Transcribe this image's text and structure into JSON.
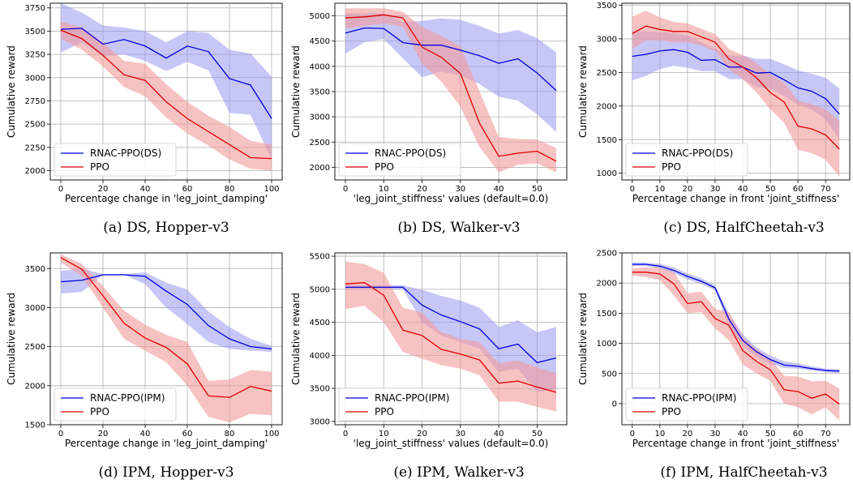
{
  "colors": {
    "blue_line": "#0000dd",
    "red_line": "#e00000",
    "blue_band": "#9999f0",
    "red_band": "#f29a9a",
    "grid": "#b0b0b0"
  },
  "chart_data": [
    {
      "type": "line",
      "caption": "(a) DS, Hopper-v3",
      "xlabel": "Percentage change in 'leg_joint_damping'",
      "ylabel": "Cumulative reward",
      "xlim": [
        -5,
        105
      ],
      "ylim": [
        1900,
        3800
      ],
      "xticks": [
        0,
        20,
        40,
        60,
        80,
        100
      ],
      "yticks": [
        2000,
        2250,
        2500,
        2750,
        3000,
        3250,
        3500,
        3750
      ],
      "legend": "lower-left",
      "x": [
        0,
        10,
        20,
        30,
        40,
        50,
        60,
        70,
        80,
        90,
        100
      ],
      "series": [
        {
          "name": "RNAC-PPO(DS)",
          "color": "blue",
          "values": [
            3520,
            3530,
            3360,
            3410,
            3340,
            3210,
            3340,
            3280,
            2990,
            2920,
            2560
          ],
          "lower": [
            3270,
            3380,
            3230,
            3250,
            3180,
            3070,
            3170,
            3080,
            2620,
            2600,
            2120
          ],
          "upper": [
            3800,
            3700,
            3560,
            3540,
            3500,
            3380,
            3500,
            3480,
            3300,
            3260,
            3010
          ]
        },
        {
          "name": "PPO",
          "color": "red",
          "values": [
            3510,
            3420,
            3240,
            3030,
            2970,
            2740,
            2560,
            2420,
            2280,
            2140,
            2130
          ],
          "lower": [
            3420,
            3300,
            3120,
            2900,
            2800,
            2570,
            2400,
            2270,
            2120,
            2020,
            2000
          ],
          "upper": [
            3600,
            3540,
            3380,
            3180,
            3150,
            2930,
            2740,
            2590,
            2470,
            2320,
            2280
          ]
        }
      ]
    },
    {
      "type": "line",
      "caption": "(b) DS, Walker-v3",
      "xlabel": "'leg_joint_stiffness' values (default=0.0)",
      "ylabel": "Cumulative reward",
      "xlim": [
        -2.75,
        57.75
      ],
      "ylim": [
        1750,
        5250
      ],
      "xticks": [
        0,
        10,
        20,
        30,
        40,
        50
      ],
      "yticks": [
        2000,
        2500,
        3000,
        3500,
        4000,
        4500,
        5000
      ],
      "legend": "lower-left",
      "x": [
        0,
        5,
        10,
        15,
        20,
        25,
        30,
        35,
        40,
        45,
        50,
        55
      ],
      "series": [
        {
          "name": "RNAC-PPO(DS)",
          "color": "blue",
          "values": [
            4660,
            4760,
            4750,
            4470,
            4420,
            4420,
            4320,
            4210,
            4060,
            4150,
            3870,
            3520
          ],
          "lower": [
            4250,
            4480,
            4540,
            4160,
            3780,
            3900,
            3820,
            3650,
            3400,
            3320,
            3050,
            2700
          ],
          "upper": [
            5050,
            5050,
            5050,
            4880,
            4900,
            4950,
            4920,
            4800,
            4650,
            4720,
            4560,
            4280
          ]
        },
        {
          "name": "PPO",
          "color": "red",
          "values": [
            4960,
            4980,
            5020,
            4960,
            4380,
            4180,
            3860,
            2870,
            2220,
            2280,
            2320,
            2120
          ],
          "lower": [
            4750,
            4800,
            4850,
            4780,
            4050,
            3700,
            3200,
            2400,
            1900,
            2050,
            2080,
            1900
          ],
          "upper": [
            5150,
            5150,
            5150,
            5080,
            4780,
            4600,
            4400,
            3500,
            2600,
            2560,
            2550,
            2380
          ]
        }
      ]
    },
    {
      "type": "line",
      "caption": "(c) DS, HalfCheetah-v3",
      "xlabel": "Percentage change in front 'joint_stiffness'",
      "ylabel": "Cumulative reward",
      "xlim": [
        -3.75,
        78.75
      ],
      "ylim": [
        900,
        3530
      ],
      "xticks": [
        0,
        10,
        20,
        30,
        40,
        50,
        60,
        70
      ],
      "yticks": [
        1000,
        1500,
        2000,
        2500,
        3000,
        3500
      ],
      "legend": "lower-left",
      "x": [
        0,
        5,
        10,
        15,
        20,
        25,
        30,
        35,
        40,
        45,
        50,
        55,
        60,
        65,
        70,
        75
      ],
      "series": [
        {
          "name": "RNAC-PPO(DS)",
          "color": "blue",
          "values": [
            2740,
            2770,
            2820,
            2840,
            2800,
            2680,
            2690,
            2580,
            2580,
            2490,
            2500,
            2390,
            2270,
            2220,
            2110,
            1880
          ],
          "lower": [
            2380,
            2450,
            2550,
            2600,
            2570,
            2520,
            2520,
            2400,
            2400,
            2280,
            2260,
            2150,
            2020,
            1950,
            1800,
            1500
          ],
          "upper": [
            3120,
            3110,
            3100,
            3090,
            3050,
            2950,
            2860,
            2750,
            2750,
            2700,
            2700,
            2620,
            2530,
            2480,
            2420,
            2260
          ]
        },
        {
          "name": "PPO",
          "color": "red",
          "values": [
            3080,
            3190,
            3140,
            3110,
            3110,
            3030,
            2950,
            2700,
            2580,
            2420,
            2200,
            2060,
            1700,
            1660,
            1570,
            1360
          ],
          "lower": [
            2850,
            2980,
            2980,
            2950,
            2950,
            2900,
            2820,
            2550,
            2400,
            2200,
            1950,
            1750,
            1350,
            1300,
            1200,
            950
          ],
          "upper": [
            3330,
            3420,
            3320,
            3250,
            3230,
            3150,
            3070,
            2850,
            2760,
            2640,
            2470,
            2350,
            2080,
            2030,
            1950,
            1780
          ]
        }
      ]
    },
    {
      "type": "line",
      "caption": "(d) IPM, Hopper-v3",
      "xlabel": "Percentage change in 'leg_joint_damping'",
      "ylabel": "Cumulative reward",
      "xlim": [
        -5,
        105
      ],
      "ylim": [
        1500,
        3700
      ],
      "xticks": [
        0,
        20,
        40,
        60,
        80,
        100
      ],
      "yticks": [
        1500,
        2000,
        2500,
        3000,
        3500
      ],
      "legend": "lower-left",
      "x": [
        0,
        10,
        20,
        30,
        40,
        50,
        60,
        70,
        80,
        90,
        100
      ],
      "series": [
        {
          "name": "RNAC-PPO(IPM)",
          "color": "blue",
          "values": [
            3330,
            3350,
            3420,
            3420,
            3400,
            3210,
            3040,
            2770,
            2600,
            2500,
            2470
          ],
          "lower": [
            3180,
            3200,
            3420,
            3420,
            3300,
            3000,
            2790,
            2560,
            2470,
            2450,
            2430
          ],
          "upper": [
            3470,
            3500,
            3430,
            3430,
            3450,
            3320,
            3230,
            2950,
            2750,
            2600,
            2510
          ]
        },
        {
          "name": "PPO",
          "color": "red",
          "values": [
            3640,
            3490,
            3150,
            2800,
            2610,
            2490,
            2280,
            1870,
            1850,
            1990,
            1930
          ],
          "lower": [
            3580,
            3400,
            3000,
            2600,
            2450,
            2300,
            2000,
            1600,
            1530,
            1640,
            1620
          ],
          "upper": [
            3680,
            3560,
            3270,
            2960,
            2780,
            2650,
            2560,
            2060,
            2080,
            2200,
            2180
          ]
        }
      ]
    },
    {
      "type": "line",
      "caption": "(e) IPM, Walker-v3",
      "xlabel": "'leg_joint_stiffness' values (default=0.0)",
      "ylabel": "Cumulative reward",
      "xlim": [
        -2.75,
        57.75
      ],
      "ylim": [
        2950,
        5550
      ],
      "xticks": [
        0,
        10,
        20,
        30,
        40,
        50
      ],
      "yticks": [
        3000,
        3500,
        4000,
        4500,
        5000,
        5500
      ],
      "legend": "lower-left",
      "x": [
        0,
        5,
        10,
        15,
        20,
        25,
        30,
        35,
        40,
        45,
        50,
        55
      ],
      "series": [
        {
          "name": "RNAC-PPO(IPM)",
          "color": "blue",
          "values": [
            5030,
            5030,
            5030,
            5030,
            4760,
            4610,
            4510,
            4400,
            4100,
            4170,
            3890,
            3960
          ],
          "lower": [
            5000,
            5000,
            5000,
            5000,
            4500,
            4300,
            4200,
            4100,
            3750,
            3800,
            3450,
            3480
          ],
          "upper": [
            5060,
            5060,
            5060,
            5060,
            4990,
            4900,
            4830,
            4720,
            4430,
            4530,
            4350,
            4430
          ]
        },
        {
          "name": "PPO",
          "color": "red",
          "values": [
            5080,
            5100,
            4910,
            4380,
            4300,
            4090,
            4020,
            3930,
            3580,
            3610,
            3520,
            3440
          ],
          "lower": [
            4700,
            4750,
            4500,
            4050,
            3950,
            3850,
            3800,
            3700,
            3300,
            3300,
            3220,
            3150
          ],
          "upper": [
            5420,
            5380,
            5250,
            4720,
            4650,
            4350,
            4250,
            4200,
            3880,
            3920,
            3820,
            3730
          ]
        }
      ]
    },
    {
      "type": "line",
      "caption": "(f) IPM, HalfCheetah-v3",
      "xlabel": "Percentage change in front 'joint_stiffness'",
      "ylabel": "Cumulative reward",
      "xlim": [
        -3.75,
        78.75
      ],
      "ylim": [
        -350,
        2500
      ],
      "xticks": [
        0,
        10,
        20,
        30,
        40,
        50,
        60,
        70
      ],
      "yticks": [
        0,
        500,
        1000,
        1500,
        2000,
        2500
      ],
      "legend": "lower-left",
      "x": [
        0,
        5,
        10,
        15,
        20,
        25,
        30,
        35,
        40,
        45,
        50,
        55,
        60,
        65,
        70,
        75
      ],
      "series": [
        {
          "name": "RNAC-PPO(IPM)",
          "color": "blue",
          "values": [
            2310,
            2310,
            2280,
            2210,
            2110,
            2030,
            1920,
            1400,
            1050,
            860,
            730,
            640,
            620,
            580,
            550,
            540
          ],
          "lower": [
            2280,
            2280,
            2240,
            2160,
            2060,
            1980,
            1880,
            1280,
            950,
            780,
            660,
            590,
            580,
            550,
            520,
            500
          ],
          "upper": [
            2340,
            2340,
            2320,
            2260,
            2160,
            2080,
            1960,
            1500,
            1150,
            930,
            800,
            700,
            670,
            620,
            580,
            570
          ]
        },
        {
          "name": "PPO",
          "color": "red",
          "values": [
            2180,
            2180,
            2150,
            1990,
            1660,
            1690,
            1410,
            1300,
            880,
            700,
            560,
            230,
            200,
            90,
            160,
            -10
          ],
          "lower": [
            2120,
            2100,
            2050,
            1800,
            1500,
            1520,
            1250,
            1050,
            650,
            500,
            380,
            0,
            -60,
            -180,
            -60,
            -280
          ],
          "upper": [
            2240,
            2260,
            2250,
            2180,
            1830,
            1860,
            1570,
            1520,
            1100,
            900,
            740,
            460,
            450,
            370,
            380,
            250
          ]
        }
      ]
    }
  ]
}
